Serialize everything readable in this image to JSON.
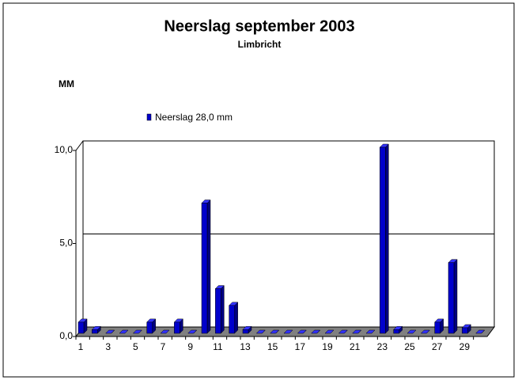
{
  "chart_data": {
    "type": "bar3d",
    "title": "Neerslag september 2003",
    "subtitle": "Limbricht",
    "y_label": "MM",
    "categories": [
      "1",
      null,
      "3",
      null,
      "5",
      null,
      "7",
      null,
      "9",
      null,
      "11",
      null,
      "13",
      null,
      "15",
      null,
      "17",
      null,
      "19",
      null,
      "21",
      null,
      "23",
      null,
      "25",
      null,
      "27",
      null,
      "29",
      null
    ],
    "series": [
      {
        "name": "Neerslag 28,0 mm",
        "color": "#0000cc",
        "values": [
          0.6,
          0.2,
          0,
          0,
          0,
          0.6,
          0,
          0.6,
          0,
          7.0,
          2.4,
          1.5,
          0.2,
          0,
          0,
          0,
          0,
          0,
          0,
          0,
          0,
          0,
          10.0,
          0.2,
          0,
          0,
          0.6,
          3.8,
          0.3,
          0
        ]
      }
    ],
    "ylim": [
      0,
      10
    ],
    "yticks": [
      {
        "value": 0,
        "label": "0,0"
      },
      {
        "value": 5,
        "label": "5,0"
      },
      {
        "value": 10,
        "label": "10,0"
      }
    ],
    "grid": true
  }
}
